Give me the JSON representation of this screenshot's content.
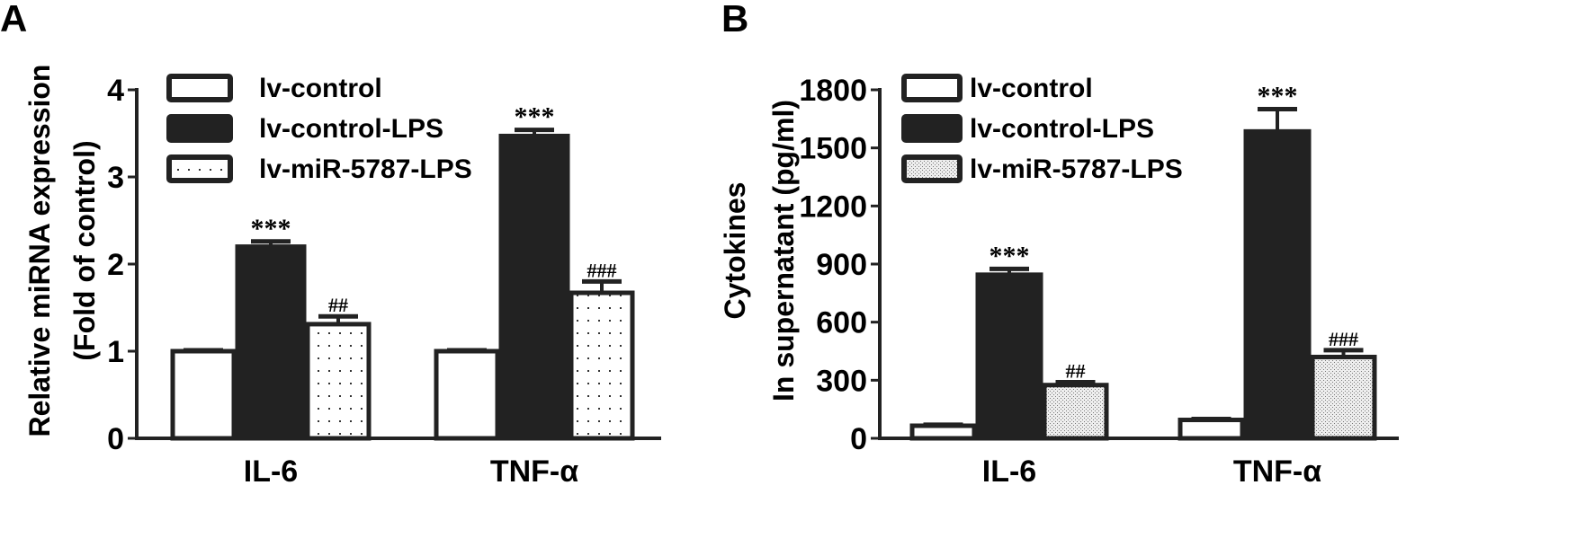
{
  "chart_data": [
    {
      "type": "bar",
      "panel_label": "A",
      "ylabel": [
        "Relative miRNA expression",
        "(Fold of control)"
      ],
      "ylim": [
        0,
        4
      ],
      "yticks": [
        0,
        1,
        2,
        3,
        4
      ],
      "categories": [
        "IL-6",
        "TNF-α"
      ],
      "legend_position": "top-left",
      "grid": false,
      "series": [
        {
          "name": "lv-control",
          "fill": "#ffffff",
          "pattern": "none",
          "values": [
            1.0,
            1.0
          ],
          "errors": [
            0.01,
            0.01
          ],
          "annotations": [
            "",
            ""
          ]
        },
        {
          "name": "lv-control-LPS",
          "fill": "#222222",
          "pattern": "none",
          "values": [
            2.2,
            3.47
          ],
          "errors": [
            0.06,
            0.07
          ],
          "annotations": [
            "***",
            "***"
          ]
        },
        {
          "name": "lv-miR-5787-LPS",
          "fill": "#ffffff",
          "pattern": "sparse-dots",
          "values": [
            1.31,
            1.67
          ],
          "errors": [
            0.09,
            0.13
          ],
          "annotations": [
            "##",
            "###"
          ]
        }
      ]
    },
    {
      "type": "bar",
      "panel_label": "B",
      "ylabel": [
        "Cytokines",
        "In supernatant (pg/ml)"
      ],
      "ylim": [
        0,
        1800
      ],
      "yticks": [
        0,
        300,
        600,
        900,
        1200,
        1500,
        1800
      ],
      "categories": [
        "IL-6",
        "TNF-α"
      ],
      "legend_position": "top-left",
      "grid": false,
      "series": [
        {
          "name": "lv-control",
          "fill": "#ffffff",
          "pattern": "none",
          "values": [
            65,
            95
          ],
          "errors": [
            5,
            5
          ],
          "annotations": [
            "",
            ""
          ]
        },
        {
          "name": "lv-control-LPS",
          "fill": "#222222",
          "pattern": "none",
          "values": [
            845,
            1585
          ],
          "errors": [
            30,
            115
          ],
          "annotations": [
            "***",
            "***"
          ]
        },
        {
          "name": "lv-miR-5787-LPS",
          "fill": "#ffffff",
          "pattern": "dense-dots",
          "values": [
            275,
            420
          ],
          "errors": [
            15,
            35
          ],
          "annotations": [
            "##",
            "###"
          ]
        }
      ]
    }
  ]
}
